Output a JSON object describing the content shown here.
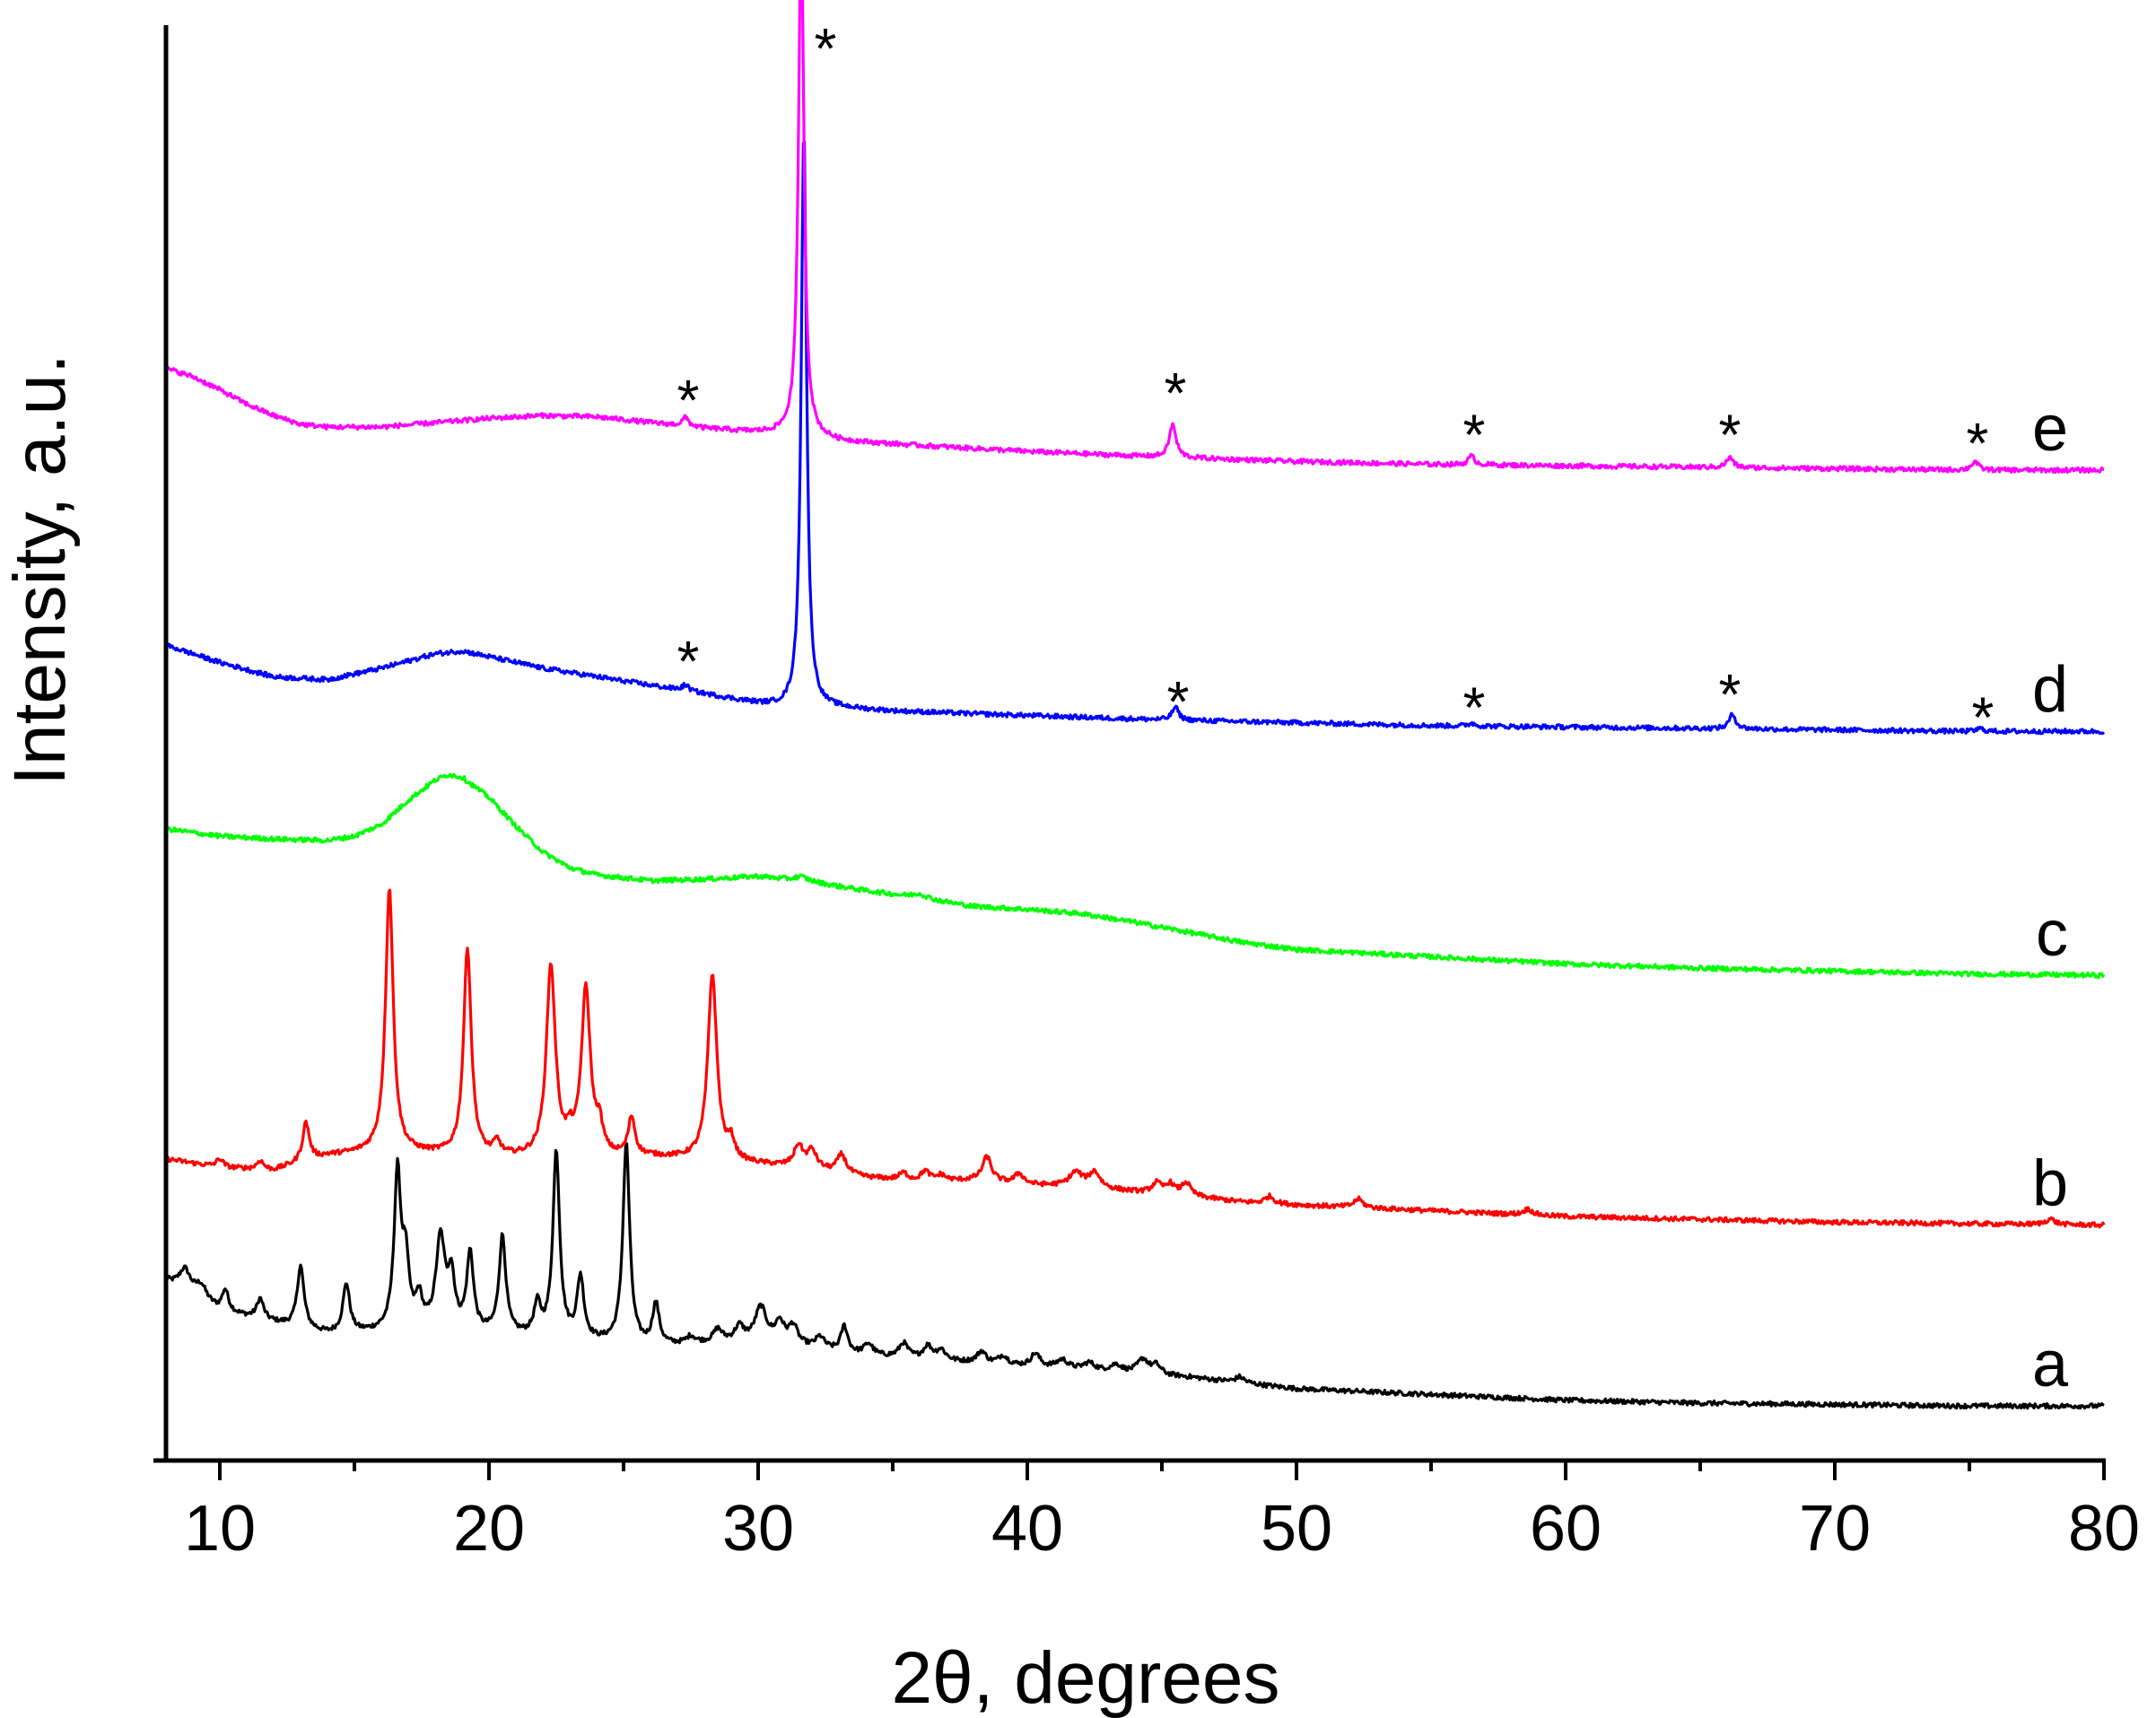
{
  "chart_data": {
    "type": "line",
    "title": "",
    "xlabel": "2θ, degrees",
    "ylabel": "Intensity, a.u.",
    "xlim": [
      8,
      80
    ],
    "ylim": [
      0,
      100
    ],
    "x_ticks": [
      10,
      20,
      30,
      40,
      50,
      60,
      70,
      80
    ],
    "y_ticks_shown": false,
    "grid": false,
    "peak_marker_symbol": "*",
    "series": [
      {
        "name": "a",
        "color": "#000000",
        "baseline": [
          [
            8,
            12.5
          ],
          [
            10,
            10.4
          ],
          [
            14,
            8.8
          ],
          [
            18,
            9.0
          ],
          [
            22,
            8.5
          ],
          [
            26,
            7.9
          ],
          [
            30,
            8.3
          ],
          [
            34,
            7.3
          ],
          [
            38,
            6.8
          ],
          [
            42,
            6.3
          ],
          [
            46,
            5.8
          ],
          [
            50,
            5.0
          ],
          [
            55,
            4.6
          ],
          [
            60,
            4.2
          ],
          [
            65,
            4.0
          ],
          [
            70,
            3.9
          ],
          [
            75,
            3.8
          ],
          [
            80,
            3.8
          ]
        ],
        "peaks": [
          [
            8.7,
            1.5,
            0.25
          ],
          [
            9.3,
            1.0,
            0.25
          ],
          [
            10.2,
            1.5,
            0.15
          ],
          [
            11.5,
            1.4,
            0.15
          ],
          [
            13.0,
            4.3,
            0.15
          ],
          [
            14.7,
            3.4,
            0.15
          ],
          [
            16.6,
            10.8,
            0.15
          ],
          [
            16.9,
            4.5,
            0.15
          ],
          [
            17.4,
            2.0,
            0.15
          ],
          [
            18.2,
            6.3,
            0.2
          ],
          [
            18.6,
            3.5,
            0.15
          ],
          [
            19.3,
            5.4,
            0.15
          ],
          [
            20.5,
            6.8,
            0.15
          ],
          [
            21.8,
            2.1,
            0.15
          ],
          [
            22.5,
            13.0,
            0.15
          ],
          [
            23.4,
            4.3,
            0.15
          ],
          [
            25.1,
            14.0,
            0.15
          ],
          [
            26.2,
            2.9,
            0.15
          ],
          [
            27.5,
            0.5,
            0.2
          ],
          [
            28.5,
            0.9,
            0.2
          ],
          [
            29.3,
            1.0,
            0.2
          ],
          [
            30.1,
            2.3,
            0.25
          ],
          [
            30.8,
            1.4,
            0.2
          ],
          [
            31.3,
            1.3,
            0.2
          ],
          [
            32.3,
            0.8,
            0.2
          ],
          [
            33.2,
            1.8,
            0.15
          ],
          [
            34.1,
            0.8,
            0.2
          ],
          [
            35.4,
            1.0,
            0.2
          ],
          [
            36.3,
            0.9,
            0.2
          ],
          [
            36.8,
            0.7,
            0.2
          ],
          [
            38.3,
            0.8,
            0.2
          ],
          [
            39.1,
            0.6,
            0.2
          ],
          [
            40.3,
            0.9,
            0.2
          ],
          [
            41.3,
            0.6,
            0.25
          ],
          [
            42.3,
            0.5,
            0.25
          ],
          [
            43.3,
            0.5,
            0.25
          ],
          [
            44.3,
            1.0,
            0.25
          ],
          [
            44.8,
            0.6,
            0.2
          ],
          [
            47.9,
            0.4,
            0.2
          ]
        ]
      },
      {
        "name": "b",
        "color": "#ff0000",
        "baseline": [
          [
            8,
            21.0
          ],
          [
            10,
            20.4
          ],
          [
            12,
            20.2
          ],
          [
            14,
            21.2
          ],
          [
            16,
            21.5
          ],
          [
            18,
            21.3
          ],
          [
            20,
            21.1
          ],
          [
            22,
            21.0
          ],
          [
            24,
            21.0
          ],
          [
            26,
            21.1
          ],
          [
            28,
            20.9
          ],
          [
            30,
            20.6
          ],
          [
            32,
            20.3
          ],
          [
            34,
            19.7
          ],
          [
            36,
            19.4
          ],
          [
            38,
            19.5
          ],
          [
            40,
            19.2
          ],
          [
            42,
            19.0
          ],
          [
            44,
            18.7
          ],
          [
            46,
            18.4
          ],
          [
            48,
            18.0
          ],
          [
            50,
            17.8
          ],
          [
            55,
            17.4
          ],
          [
            60,
            17.0
          ],
          [
            65,
            16.8
          ],
          [
            70,
            16.6
          ],
          [
            75,
            16.5
          ],
          [
            80,
            16.4
          ]
        ],
        "peaks": [
          [
            10.0,
            0.6,
            0.15
          ],
          [
            11.5,
            0.6,
            0.15
          ],
          [
            13.2,
            2.7,
            0.15
          ],
          [
            16.3,
            18.4,
            0.17
          ],
          [
            19.2,
            14.5,
            0.17
          ],
          [
            20.3,
            0.9,
            0.15
          ],
          [
            22.3,
            13.3,
            0.2
          ],
          [
            23.0,
            1.0,
            0.15
          ],
          [
            23.6,
            11.6,
            0.2
          ],
          [
            24.1,
            1.8,
            0.15
          ],
          [
            25.3,
            2.7,
            0.15
          ],
          [
            28.3,
            13.0,
            0.2
          ],
          [
            29.0,
            1.2,
            0.15
          ],
          [
            31.5,
            1.5,
            0.2
          ],
          [
            32.0,
            1.2,
            0.2
          ],
          [
            33.1,
            1.3,
            0.2
          ],
          [
            35.4,
            0.5,
            0.2
          ],
          [
            36.2,
            0.7,
            0.2
          ],
          [
            36.8,
            0.4,
            0.2
          ],
          [
            38.5,
            1.7,
            0.2
          ],
          [
            39.7,
            0.7,
            0.2
          ],
          [
            41.8,
            1.0,
            0.3
          ],
          [
            42.5,
            1.1,
            0.25
          ],
          [
            44.8,
            0.7,
            0.2
          ],
          [
            45.3,
            0.7,
            0.2
          ],
          [
            45.9,
            0.9,
            0.2
          ],
          [
            49.0,
            0.5,
            0.2
          ],
          [
            52.3,
            0.6,
            0.2
          ],
          [
            58.6,
            0.4,
            0.2
          ],
          [
            78.0,
            0.4,
            0.2
          ]
        ]
      },
      {
        "name": "c",
        "color": "#00ff00",
        "baseline": [
          [
            8,
            44.0
          ],
          [
            10,
            43.5
          ],
          [
            12,
            43.3
          ],
          [
            14,
            43.2
          ],
          [
            15,
            43.5
          ],
          [
            16,
            44.3
          ],
          [
            17,
            46.0
          ],
          [
            18,
            47.4
          ],
          [
            18.5,
            47.8
          ],
          [
            19,
            47.6
          ],
          [
            20,
            46.2
          ],
          [
            21,
            44.2
          ],
          [
            22,
            42.4
          ],
          [
            23,
            41.3
          ],
          [
            24,
            40.8
          ],
          [
            26,
            40.4
          ],
          [
            28,
            40.5
          ],
          [
            30,
            40.7
          ],
          [
            32,
            40.3
          ],
          [
            34,
            39.7
          ],
          [
            36,
            39.2
          ],
          [
            38,
            38.6
          ],
          [
            40,
            38.4
          ],
          [
            42,
            38.1
          ],
          [
            44,
            37.5
          ],
          [
            46,
            36.8
          ],
          [
            48,
            36.1
          ],
          [
            50,
            35.6
          ],
          [
            52,
            35.4
          ],
          [
            55,
            35.1
          ],
          [
            58,
            34.8
          ],
          [
            60,
            34.6
          ],
          [
            65,
            34.3
          ],
          [
            70,
            34.1
          ],
          [
            75,
            33.9
          ],
          [
            80,
            33.8
          ]
        ],
        "peaks": [
          [
            31.6,
            0.3,
            0.3
          ],
          [
            36.0,
            0.3,
            0.3
          ]
        ]
      },
      {
        "name": "d",
        "color": "#0000ff",
        "baseline": [
          [
            8,
            56.8
          ],
          [
            10,
            55.6
          ],
          [
            12,
            54.6
          ],
          [
            14,
            54.4
          ],
          [
            16,
            55.2
          ],
          [
            18,
            56.2
          ],
          [
            19,
            56.4
          ],
          [
            20,
            56.0
          ],
          [
            22,
            55.2
          ],
          [
            24,
            54.6
          ],
          [
            26,
            54.0
          ],
          [
            28,
            53.4
          ],
          [
            30,
            52.7
          ],
          [
            31,
            52.4
          ],
          [
            33,
            52.4
          ],
          [
            35,
            52.2
          ],
          [
            40,
            51.9
          ],
          [
            45,
            51.6
          ],
          [
            50,
            51.4
          ],
          [
            55,
            51.2
          ],
          [
            60,
            51.1
          ],
          [
            65,
            51.0
          ],
          [
            70,
            50.9
          ],
          [
            75,
            50.8
          ],
          [
            80,
            50.8
          ]
        ],
        "peaks": [
          [
            27.3,
            0.4,
            0.15
          ],
          [
            31.7,
            40.5,
            0.12
          ],
          [
            45.5,
            0.9,
            0.15
          ],
          [
            56.5,
            0.2,
            0.15
          ],
          [
            66.2,
            1.0,
            0.15
          ],
          [
            75.4,
            0.2,
            0.15
          ]
        ]
      },
      {
        "name": "e",
        "color": "#ff00ff",
        "baseline": [
          [
            8,
            76.1
          ],
          [
            9,
            75.5
          ],
          [
            10,
            74.6
          ],
          [
            11,
            73.6
          ],
          [
            12,
            72.8
          ],
          [
            13,
            72.2
          ],
          [
            14,
            72.0
          ],
          [
            16,
            72.0
          ],
          [
            18,
            72.3
          ],
          [
            20,
            72.6
          ],
          [
            22,
            72.8
          ],
          [
            24,
            72.7
          ],
          [
            26,
            72.3
          ],
          [
            28,
            71.9
          ],
          [
            30,
            71.6
          ],
          [
            31,
            71.5
          ],
          [
            33,
            71.0
          ],
          [
            35,
            70.8
          ],
          [
            40,
            70.3
          ],
          [
            45,
            69.9
          ],
          [
            50,
            69.6
          ],
          [
            55,
            69.4
          ],
          [
            60,
            69.3
          ],
          [
            65,
            69.2
          ],
          [
            70,
            69.1
          ],
          [
            75,
            69.0
          ],
          [
            80,
            69.0
          ]
        ],
        "peaks": [
          [
            27.3,
            0.6,
            0.15
          ],
          [
            31.6,
            36.0,
            0.12
          ],
          [
            45.4,
            2.3,
            0.15
          ],
          [
            56.5,
            0.6,
            0.15
          ],
          [
            66.1,
            0.7,
            0.15
          ],
          [
            75.2,
            0.6,
            0.15
          ]
        ]
      }
    ],
    "annotations": [
      {
        "text": "*",
        "x": 27.4,
        "y": 74.0
      },
      {
        "text": "*",
        "x": 32.5,
        "y": 98.5
      },
      {
        "text": "*",
        "x": 45.5,
        "y": 74.5
      },
      {
        "text": "*",
        "x": 56.6,
        "y": 71.6
      },
      {
        "text": "*",
        "x": 66.1,
        "y": 71.6
      },
      {
        "text": "*",
        "x": 75.3,
        "y": 71.0
      },
      {
        "text": "*",
        "x": 27.4,
        "y": 55.8
      },
      {
        "text": "*",
        "x": 45.6,
        "y": 53.0
      },
      {
        "text": "*",
        "x": 56.6,
        "y": 52.6
      },
      {
        "text": "*",
        "x": 66.1,
        "y": 53.5
      },
      {
        "text": "*",
        "x": 75.5,
        "y": 51.9
      }
    ]
  }
}
